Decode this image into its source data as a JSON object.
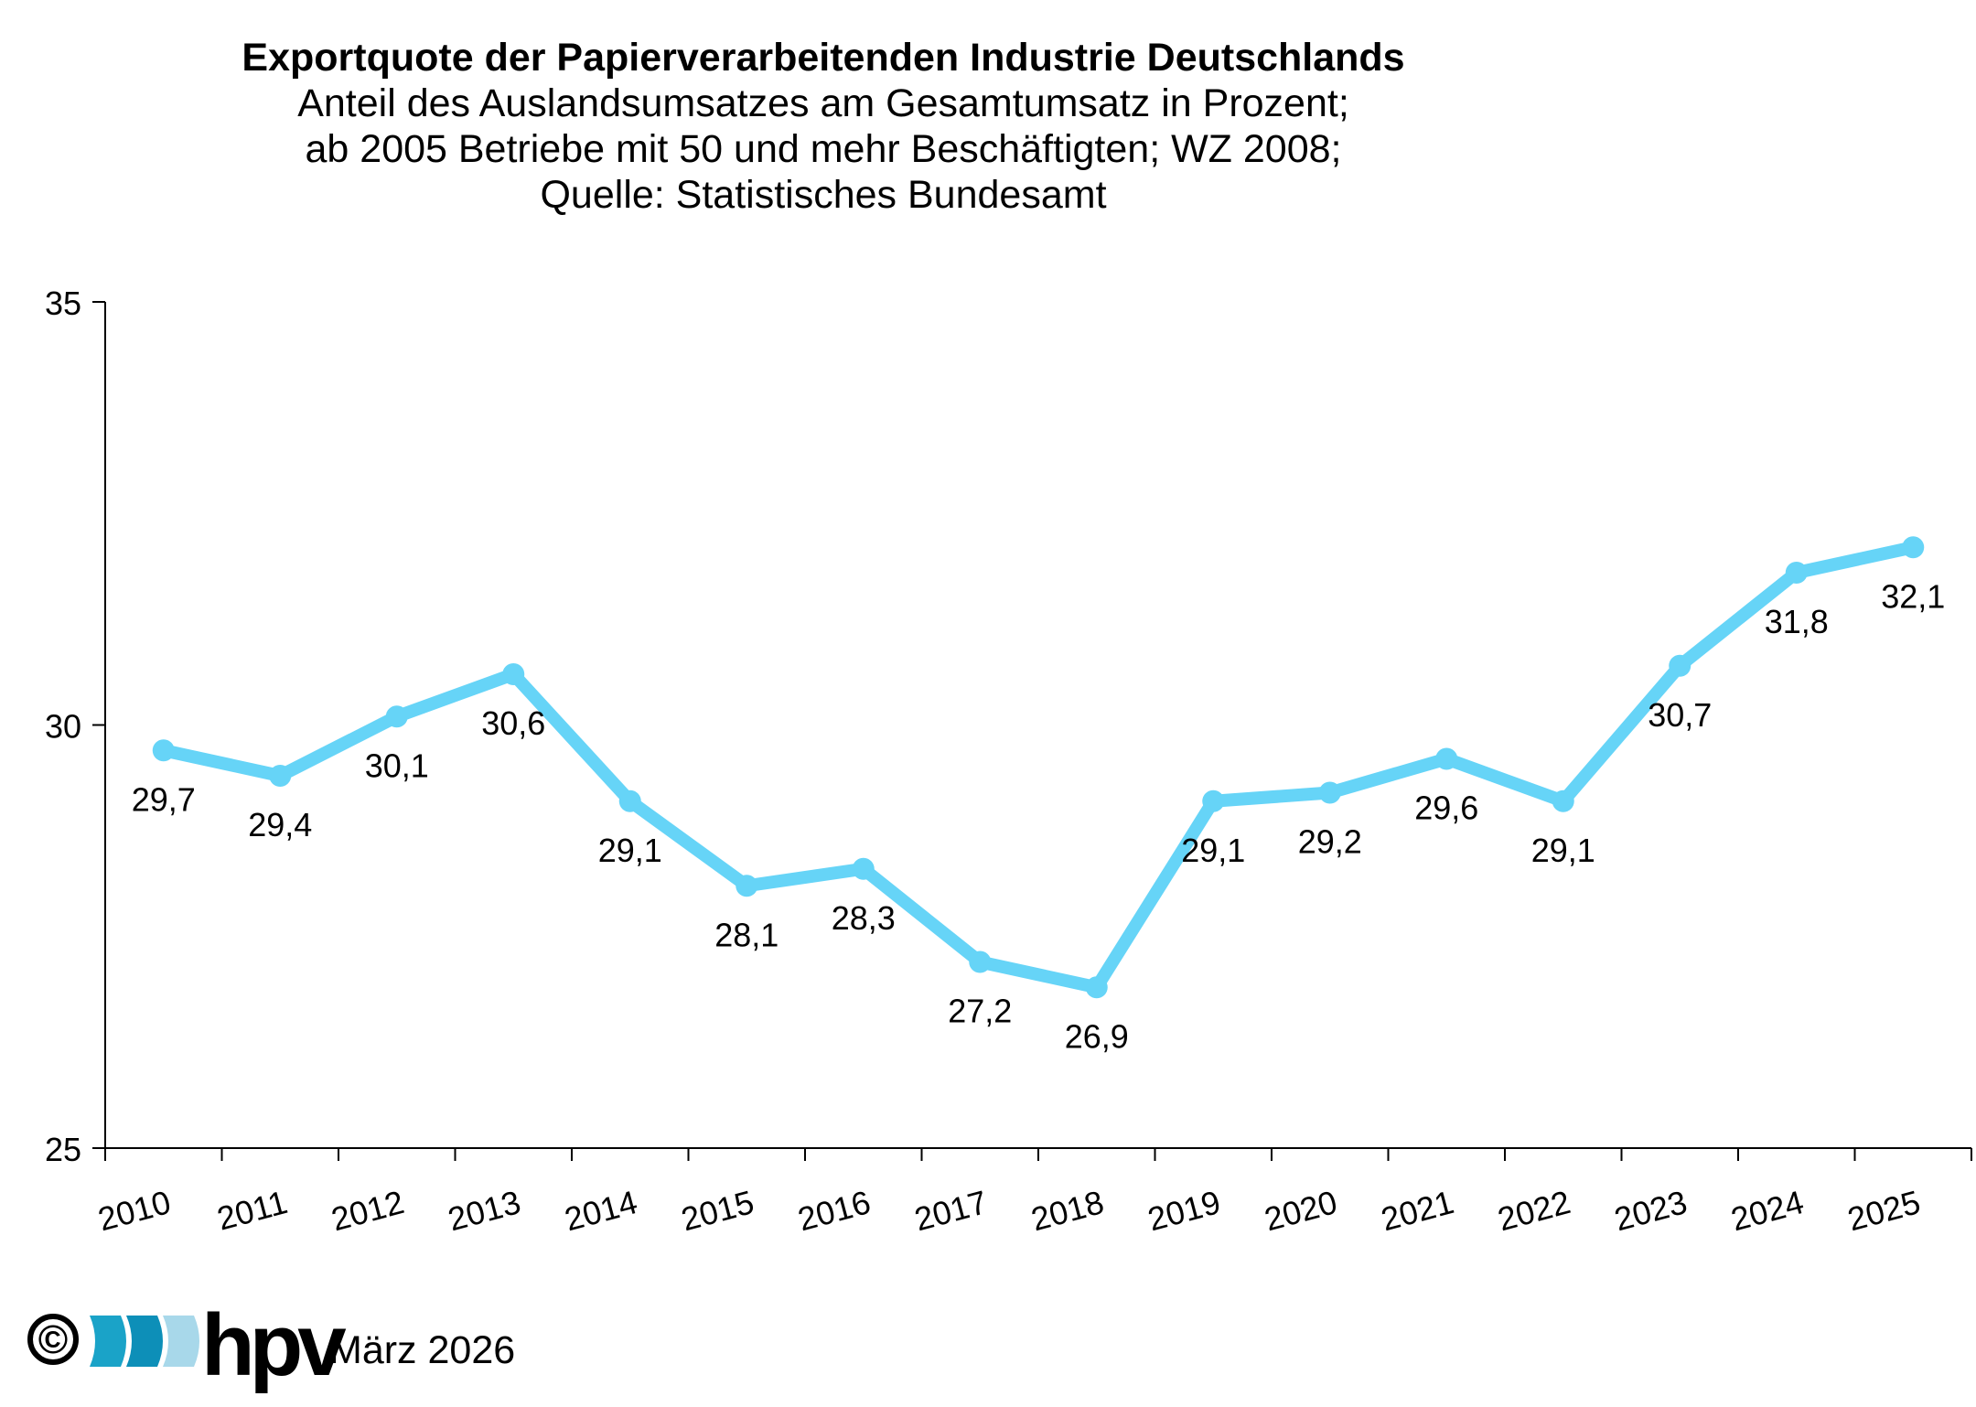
{
  "header": {
    "title": "Exportquote der Papierverarbeitenden Industrie Deutschlands",
    "subtitle_lines": [
      "Anteil des Auslandsumsatzes am Gesamtumsatz in Prozent;",
      "ab 2005 Betriebe mit 50 und mehr Beschäftigten; WZ 2008;",
      "Quelle: Statistisches Bundesamt"
    ]
  },
  "chart_data": {
    "type": "line",
    "title": "Exportquote der Papierverarbeitenden Industrie Deutschlands",
    "xlabel": "",
    "ylabel": "",
    "categories": [
      "2010",
      "2011",
      "2012",
      "2013",
      "2014",
      "2015",
      "2016",
      "2017",
      "2018",
      "2019",
      "2020",
      "2021",
      "2022",
      "2023",
      "2024",
      "2025"
    ],
    "series": [
      {
        "name": "Exportquote",
        "values": [
          29.7,
          29.4,
          30.1,
          30.6,
          29.1,
          28.1,
          28.3,
          27.2,
          26.9,
          29.1,
          29.2,
          29.6,
          29.1,
          30.7,
          31.8,
          32.1
        ],
        "labels": [
          "29,7",
          "29,4",
          "30,1",
          "30,6",
          "29,1",
          "28,1",
          "28,3",
          "27,2",
          "26,9",
          "29,1",
          "29,2",
          "29,6",
          "29,1",
          "30,7",
          "31,8",
          "32,1"
        ],
        "color": "#66d4f7"
      }
    ],
    "ylim": [
      25,
      35
    ],
    "yticks": [
      25,
      30,
      35
    ],
    "ytick_labels": [
      "25",
      "30",
      "35"
    ],
    "grid": false,
    "legend": "none"
  },
  "footer": {
    "copyright_symbol": "©",
    "logo_text": "hpv",
    "logo_colors": [
      "#1aa3c8",
      "#0d8fb8",
      "#a8d8ea"
    ],
    "date": "März 2026"
  }
}
